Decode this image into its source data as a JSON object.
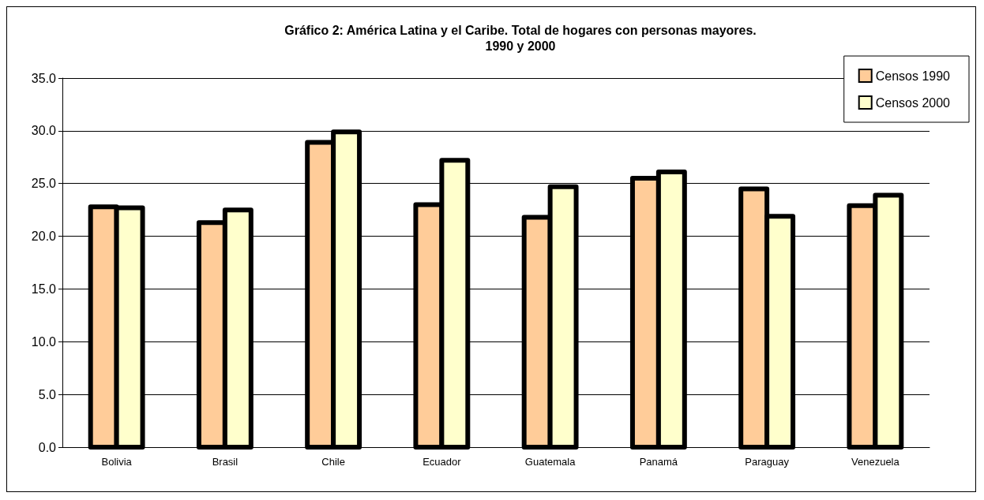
{
  "chart_data": {
    "type": "bar",
    "title": "Gráfico 2: América Latina y el Caribe. Total de hogares con personas mayores.\n1990 y 2000",
    "categories": [
      "Bolivia",
      "Brasil",
      "Chile",
      "Ecuador",
      "Guatemala",
      "Panamá",
      "Paraguay",
      "Venezuela"
    ],
    "series": [
      {
        "name": "Censos 1990",
        "color": "#ffcc99",
        "values": [
          22.8,
          21.3,
          28.9,
          23.0,
          21.8,
          25.5,
          24.5,
          22.9
        ]
      },
      {
        "name": "Censos 2000",
        "color": "#ffffcc",
        "values": [
          22.7,
          22.5,
          29.9,
          27.2,
          24.7,
          26.1,
          21.9,
          23.9
        ]
      }
    ],
    "ylim": [
      0,
      35
    ],
    "yticks": [
      {
        "value": 0,
        "label": "0.0"
      },
      {
        "value": 5,
        "label": "5.0"
      },
      {
        "value": 10,
        "label": "10.0"
      },
      {
        "value": 15,
        "label": "15.0"
      },
      {
        "value": 20,
        "label": "20.0"
      },
      {
        "value": 25,
        "label": "25.0"
      },
      {
        "value": 30,
        "label": "30.0"
      },
      {
        "value": 35,
        "label": "35.0"
      }
    ],
    "grid": "y",
    "legend": "top right"
  }
}
